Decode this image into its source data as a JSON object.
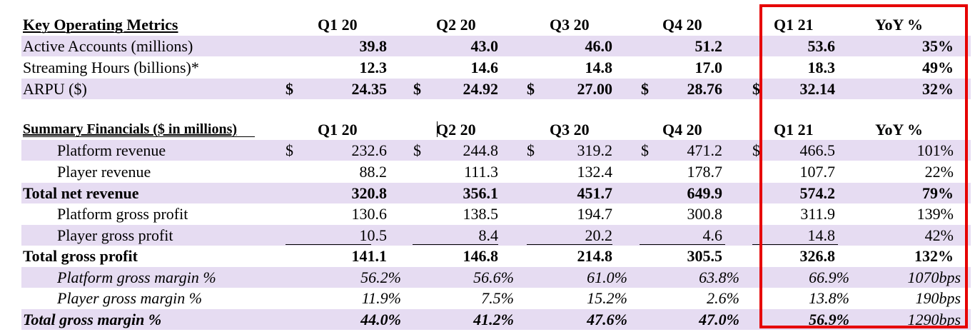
{
  "columns": [
    "Q1 20",
    "Q2 20",
    "Q3 20",
    "Q4 20",
    "Q1 21",
    "YoY %"
  ],
  "dollar_sign": "$",
  "key_metrics": {
    "title": "Key Operating Metrics",
    "rows": [
      {
        "label": "Active Accounts (millions)",
        "values": [
          "39.8",
          "43.0",
          "46.0",
          "51.2",
          "53.6",
          "35%"
        ]
      },
      {
        "label": "Streaming Hours (billions)*",
        "values": [
          "12.3",
          "14.6",
          "14.8",
          "17.0",
          "18.3",
          "49%"
        ]
      },
      {
        "label": "ARPU ($)",
        "values": [
          "24.35",
          "24.92",
          "27.00",
          "28.76",
          "32.14",
          "32%"
        ]
      }
    ]
  },
  "summary_financials": {
    "title": "Summary Financials ($ in millions)",
    "rows": [
      {
        "label": "Platform revenue",
        "values": [
          "232.6",
          "244.8",
          "319.2",
          "471.2",
          "466.5",
          "101%"
        ]
      },
      {
        "label": "Player revenue",
        "values": [
          "88.2",
          "111.3",
          "132.4",
          "178.7",
          "107.7",
          "22%"
        ]
      },
      {
        "label": "Total net revenue",
        "values": [
          "320.8",
          "356.1",
          "451.7",
          "649.9",
          "574.2",
          "79%"
        ]
      },
      {
        "label": "Platform gross profit",
        "values": [
          "130.6",
          "138.5",
          "194.7",
          "300.8",
          "311.9",
          "139%"
        ]
      },
      {
        "label": "Player gross profit",
        "values": [
          "10.5",
          "8.4",
          "20.2",
          "4.6",
          "14.8",
          "42%"
        ]
      },
      {
        "label": "Total gross profit",
        "values": [
          "141.1",
          "146.8",
          "214.8",
          "305.5",
          "326.8",
          "132%"
        ]
      },
      {
        "label": "Platform gross margin %",
        "values": [
          "56.2%",
          "56.6%",
          "61.0%",
          "63.8%",
          "66.9%",
          "1070bps"
        ]
      },
      {
        "label": "Player gross margin %",
        "values": [
          "11.9%",
          "7.5%",
          "15.2%",
          "2.6%",
          "13.8%",
          "190bps"
        ]
      },
      {
        "label": "Total gross margin %",
        "values": [
          "44.0%",
          "41.2%",
          "47.6%",
          "47.0%",
          "56.9%",
          "1290bps"
        ]
      }
    ]
  },
  "colors": {
    "row_shade": "#e6dcf2",
    "highlight_box": "#e60000"
  }
}
